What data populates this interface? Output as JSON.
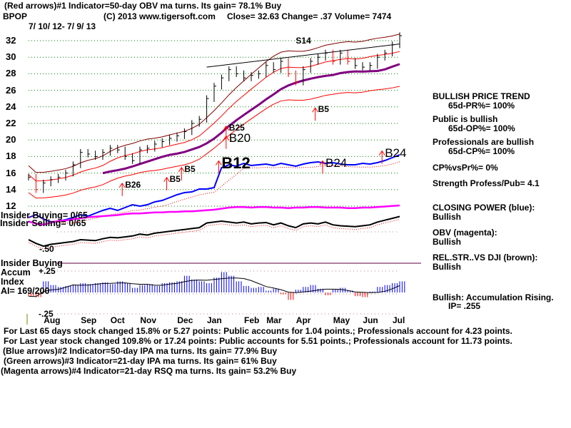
{
  "header": {
    "line1": "(Red arrows)#1 Indicator=50-day OBV ma turns. Its gain= 78.1% Buy",
    "symbol": "BPOP",
    "copyright": "(C) 2013 www.tigersoft.com",
    "quote": "Close=  32.63  Change= .37 Volume= 7474",
    "date_range": "7/ 10/ 12- 7/ 9/ 13"
  },
  "left_labels": {
    "insider_buying_ratio": "Insider Buying= 0/65",
    "insider_selling_ratio": "Insider Selling= 0/65",
    "minus50": "-.50",
    "insider_buying": "Insider Buying",
    "accum": "Accum",
    "plus25": "+.25",
    "index": "Index",
    "ai": "AI= 169/200",
    "minus25": "-.25"
  },
  "right_panel": {
    "trend": "BULLISH PRICE TREND",
    "pr": "65d-PR%= 100%",
    "public": "Public is bullish",
    "op": "65d-OP%= 100%",
    "pros": "Professionals are bullish",
    "cp": "65d-CP%= 100%",
    "cpvspr": "CP%vsPr%=  0%",
    "strength": "Strength Profess/Pub= 4.1",
    "closing_power": "CLOSING POWER (blue):",
    "closing_power_status": "Bullish",
    "obv": "OBV (magenta):",
    "obv_status": "Bullish",
    "relstr": "REL.STR..VS DJI (brown):",
    "relstr_status": "Bullish",
    "accum": "Bullish: Accumulation Rising.",
    "ip": "IP=  .255"
  },
  "footer": {
    "line1": "For Last 65 days stock changed  15.8% or  5.27 points:  Public accounts for  1.04 points.;  Professionals account for  4.23 points.",
    "line2": "For Last year stock changed  109.8% or  17.24 points:  Public accounts for  5.51 points.;  Professionals account for  11.73 points.",
    "line3": "(Blue arrows)#2 Indicator=50-day IPA ma turns. Its gain= 77.9% Buy",
    "line4": "(Green arrows)#3 Indicator=21-day IPA ma turns. Its gain= 61% Buy",
    "line5": "(Magenta arrows)#4 Indicator=21-day RSQ ma turns. Its gain= 53.2% Buy"
  },
  "colors": {
    "price": "#000000",
    "band": "#ff0000",
    "upper_band": "#800000",
    "ma": "#800080",
    "closing_power": "#0000ff",
    "obv": "#ff00ff",
    "relstr": "#000000",
    "accum": "#0000ff",
    "grid": "#008000",
    "signal_up": "#ff0000"
  },
  "chart_data": {
    "type": "line",
    "title": "BPOP",
    "ylim": [
      12,
      32
    ],
    "yticks": [
      "32",
      "30",
      "28",
      "26",
      "24",
      "22",
      "20",
      "18",
      "16",
      "14",
      "12"
    ],
    "yticks_values": [
      32,
      30,
      28,
      26,
      24,
      22,
      20,
      18,
      16,
      14,
      12
    ],
    "months": [
      "Aug",
      "Sep",
      "Oct",
      "Nov",
      "Dec",
      "Jan",
      "Feb",
      "Mar",
      "Apr",
      "May",
      "Jun",
      "Jul"
    ],
    "months_week_index": [
      3,
      8,
      12,
      16,
      21,
      25,
      30,
      33,
      37,
      42,
      46,
      50
    ],
    "price_weekly_close": [
      15.5,
      14.0,
      14.8,
      15.2,
      15.5,
      16.0,
      17.0,
      18.5,
      18.3,
      18.0,
      18.5,
      19.0,
      18.8,
      18.0,
      17.5,
      18.8,
      19.0,
      19.5,
      19.8,
      20.2,
      20.5,
      21.0,
      22.0,
      22.5,
      25.0,
      26.5,
      27.5,
      28.5,
      28.0,
      27.5,
      27.8,
      28.0,
      29.0,
      28.5,
      29.5,
      28.0,
      27.0,
      28.5,
      29.5,
      30.0,
      30.5,
      29.5,
      30.5,
      29.5,
      29.0,
      28.8,
      29.0,
      30.0,
      30.5,
      31.5,
      32.6
    ],
    "closing_power": [
      20,
      24,
      18,
      14,
      15,
      17,
      20,
      24,
      22,
      26,
      30,
      33,
      30,
      34,
      38,
      36,
      38,
      42,
      44,
      48,
      52,
      55,
      56,
      60,
      60,
      62,
      90,
      94,
      92,
      96,
      93,
      94,
      95,
      93,
      96,
      94,
      92,
      95,
      97,
      98,
      96,
      97,
      95,
      94,
      94,
      96,
      95,
      97,
      100,
      104,
      108
    ],
    "obv": [
      10,
      6,
      4,
      8,
      11,
      12,
      14,
      16,
      18,
      19,
      20,
      21,
      22,
      24,
      25,
      25,
      26,
      27,
      27,
      28,
      28,
      29,
      29,
      30,
      31,
      32,
      34,
      36,
      37,
      37,
      36,
      37,
      37,
      36,
      36,
      35,
      36,
      36,
      37,
      37,
      36,
      36,
      36,
      35,
      35,
      36,
      36,
      37,
      38,
      39,
      40
    ],
    "relstr": [
      40,
      32,
      26,
      30,
      32,
      34,
      36,
      40,
      39,
      38,
      42,
      45,
      44,
      46,
      48,
      52,
      50,
      54,
      56,
      58,
      60,
      62,
      64,
      66,
      76,
      78,
      80,
      78,
      76,
      78,
      74,
      76,
      77,
      72,
      76,
      70,
      66,
      74,
      76,
      74,
      78,
      72,
      70,
      69,
      68,
      70,
      72,
      78,
      82,
      86,
      90
    ],
    "accum_index": [
      -0.04,
      -0.05,
      0.12,
      0.08,
      0.06,
      0.07,
      0.08,
      0.1,
      0.09,
      0.1,
      0.11,
      0.09,
      0.12,
      0.1,
      0.05,
      0.08,
      0.09,
      0.07,
      0.1,
      0.11,
      0.12,
      0.18,
      0.14,
      0.12,
      0.1,
      0.16,
      0.22,
      0.18,
      0.12,
      0.07,
      0.05,
      0.06,
      0.02,
      0.04,
      -0.02,
      -0.08,
      0.03,
      0.06,
      0.08,
      0.04,
      -0.03,
      0.03,
      0.05,
      0.02,
      -0.04,
      -0.05,
      0.01,
      0.06,
      0.08,
      0.1,
      0.12
    ],
    "signals": [
      {
        "label": "B26",
        "week": 13,
        "price": 14.6
      },
      {
        "label": "B5",
        "week": 19,
        "price": 15.3
      },
      {
        "label": "B5",
        "week": 21,
        "price": 16.5
      },
      {
        "label": "B12",
        "week": 26,
        "price": 17.3
      },
      {
        "label": "B25",
        "week": 27,
        "price": 21.5
      },
      {
        "label": "B20",
        "week": 27,
        "price": 20.3
      },
      {
        "label": "B5",
        "week": 39,
        "price": 23.7
      },
      {
        "label": "B24",
        "week": 40,
        "price": 17.3
      },
      {
        "label": "B24",
        "week": 48,
        "price": 18.5
      },
      {
        "label": "S14",
        "week": 36,
        "price": 32.0
      }
    ]
  }
}
